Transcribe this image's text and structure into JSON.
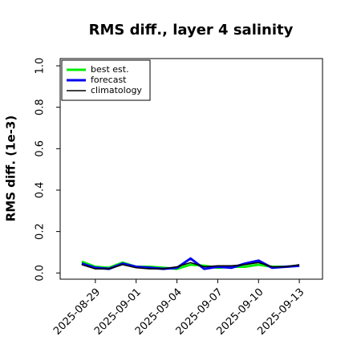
{
  "chart_data": {
    "type": "line",
    "title": "RMS diff., layer 4 salinity",
    "ylabel": "RMS diff. (1e-3)",
    "x": [
      "2025-08-28",
      "2025-08-29",
      "2025-08-30",
      "2025-08-31",
      "2025-09-01",
      "2025-09-02",
      "2025-09-03",
      "2025-09-04",
      "2025-09-05",
      "2025-09-06",
      "2025-09-07",
      "2025-09-08",
      "2025-09-09",
      "2025-09-10",
      "2025-09-11",
      "2025-09-12",
      "2025-09-13"
    ],
    "series": [
      {
        "name": "best est.",
        "color": "#00ee00",
        "width": 3,
        "values": [
          0.055,
          0.03,
          0.025,
          0.05,
          0.03,
          0.03,
          0.025,
          0.02,
          0.04,
          0.035,
          0.025,
          0.03,
          0.03,
          0.04,
          0.03,
          0.03,
          0.035
        ]
      },
      {
        "name": "forecast",
        "color": "#0000ee",
        "width": 3,
        "values": [
          0.045,
          0.025,
          0.02,
          0.045,
          0.03,
          0.025,
          0.02,
          0.025,
          0.07,
          0.02,
          0.03,
          0.025,
          0.045,
          0.06,
          0.025,
          0.03,
          0.035
        ]
      },
      {
        "name": "climatology",
        "color": "#000000",
        "width": 1.5,
        "values": [
          0.04,
          0.02,
          0.02,
          0.04,
          0.025,
          0.02,
          0.02,
          0.03,
          0.05,
          0.03,
          0.035,
          0.035,
          0.04,
          0.05,
          0.03,
          0.03,
          0.04
        ]
      }
    ],
    "xlim": [
      "2025-08-26",
      "2025-09-15"
    ],
    "xticks": [
      "2025-08-29",
      "2025-09-01",
      "2025-09-04",
      "2025-09-07",
      "2025-09-10",
      "2025-09-13"
    ],
    "xtick_colors": [
      "#000000",
      "#000000",
      "#228b22",
      "#000000",
      "#000000",
      "#000000"
    ],
    "ylim": [
      -0.03,
      1.035
    ],
    "yticks": [
      {
        "value": 0,
        "label": "0.0"
      },
      0.2,
      0.4,
      0.6,
      0.8,
      {
        "value": 1,
        "label": "1.0"
      }
    ],
    "legend": "upper left"
  }
}
